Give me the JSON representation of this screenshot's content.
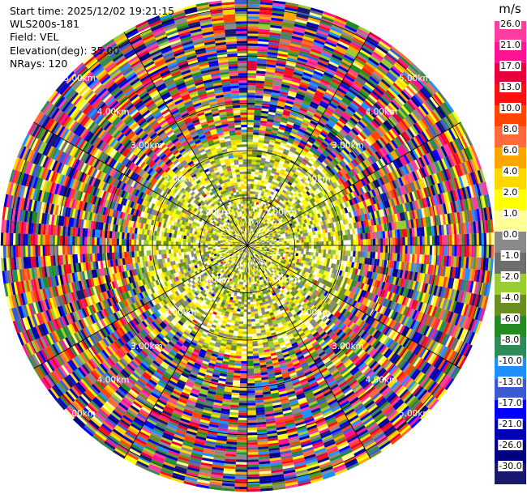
{
  "header": {
    "start_time": "Start time: 2025/12/02 19:21:15",
    "site": "WLS200s-181",
    "field": "Field: VEL",
    "elevation": "Elevation(deg): 35.00",
    "nrays": "NRays: 120"
  },
  "chart_data": {
    "type": "heatmap",
    "projection": "polar-ppi",
    "field": "VEL",
    "nrays": 120,
    "elevation_deg": 35.0,
    "range_rings_km": [
      1,
      2,
      3,
      4,
      5
    ],
    "ring_labels": [
      "1.00km",
      "2.00km",
      "3.00km",
      "4.00km",
      "5.00km"
    ],
    "max_range_km": 5.2,
    "radial_spokes_deg": [
      0,
      30,
      60,
      90,
      120,
      150,
      180,
      210,
      240,
      270,
      300,
      330
    ],
    "colorbar": {
      "unit": "m/s",
      "ticks": [
        "26.0",
        "21.0",
        "17.0",
        "13.0",
        "10.0",
        "8.0",
        "6.0",
        "4.0",
        "2.0",
        "1.0",
        "0.0",
        "-1.0",
        "-2.0",
        "-4.0",
        "-6.0",
        "-8.0",
        "-10.0",
        "-13.0",
        "-17.0",
        "-21.0",
        "-26.0",
        "-30.0"
      ],
      "colors": [
        "#ff3ca0",
        "#ff1493",
        "#e6003c",
        "#ff1010",
        "#ff4500",
        "#ff6a3c",
        "#ffa500",
        "#ffd700",
        "#ffff00",
        "#ffff96",
        "#8a8a8a",
        "#6e6e6e",
        "#9acd32",
        "#6b8e23",
        "#228b22",
        "#2e8b57",
        "#1e90ff",
        "#3c5ad2",
        "#0000ff",
        "#0000b4",
        "#000080",
        "#191970"
      ]
    }
  }
}
